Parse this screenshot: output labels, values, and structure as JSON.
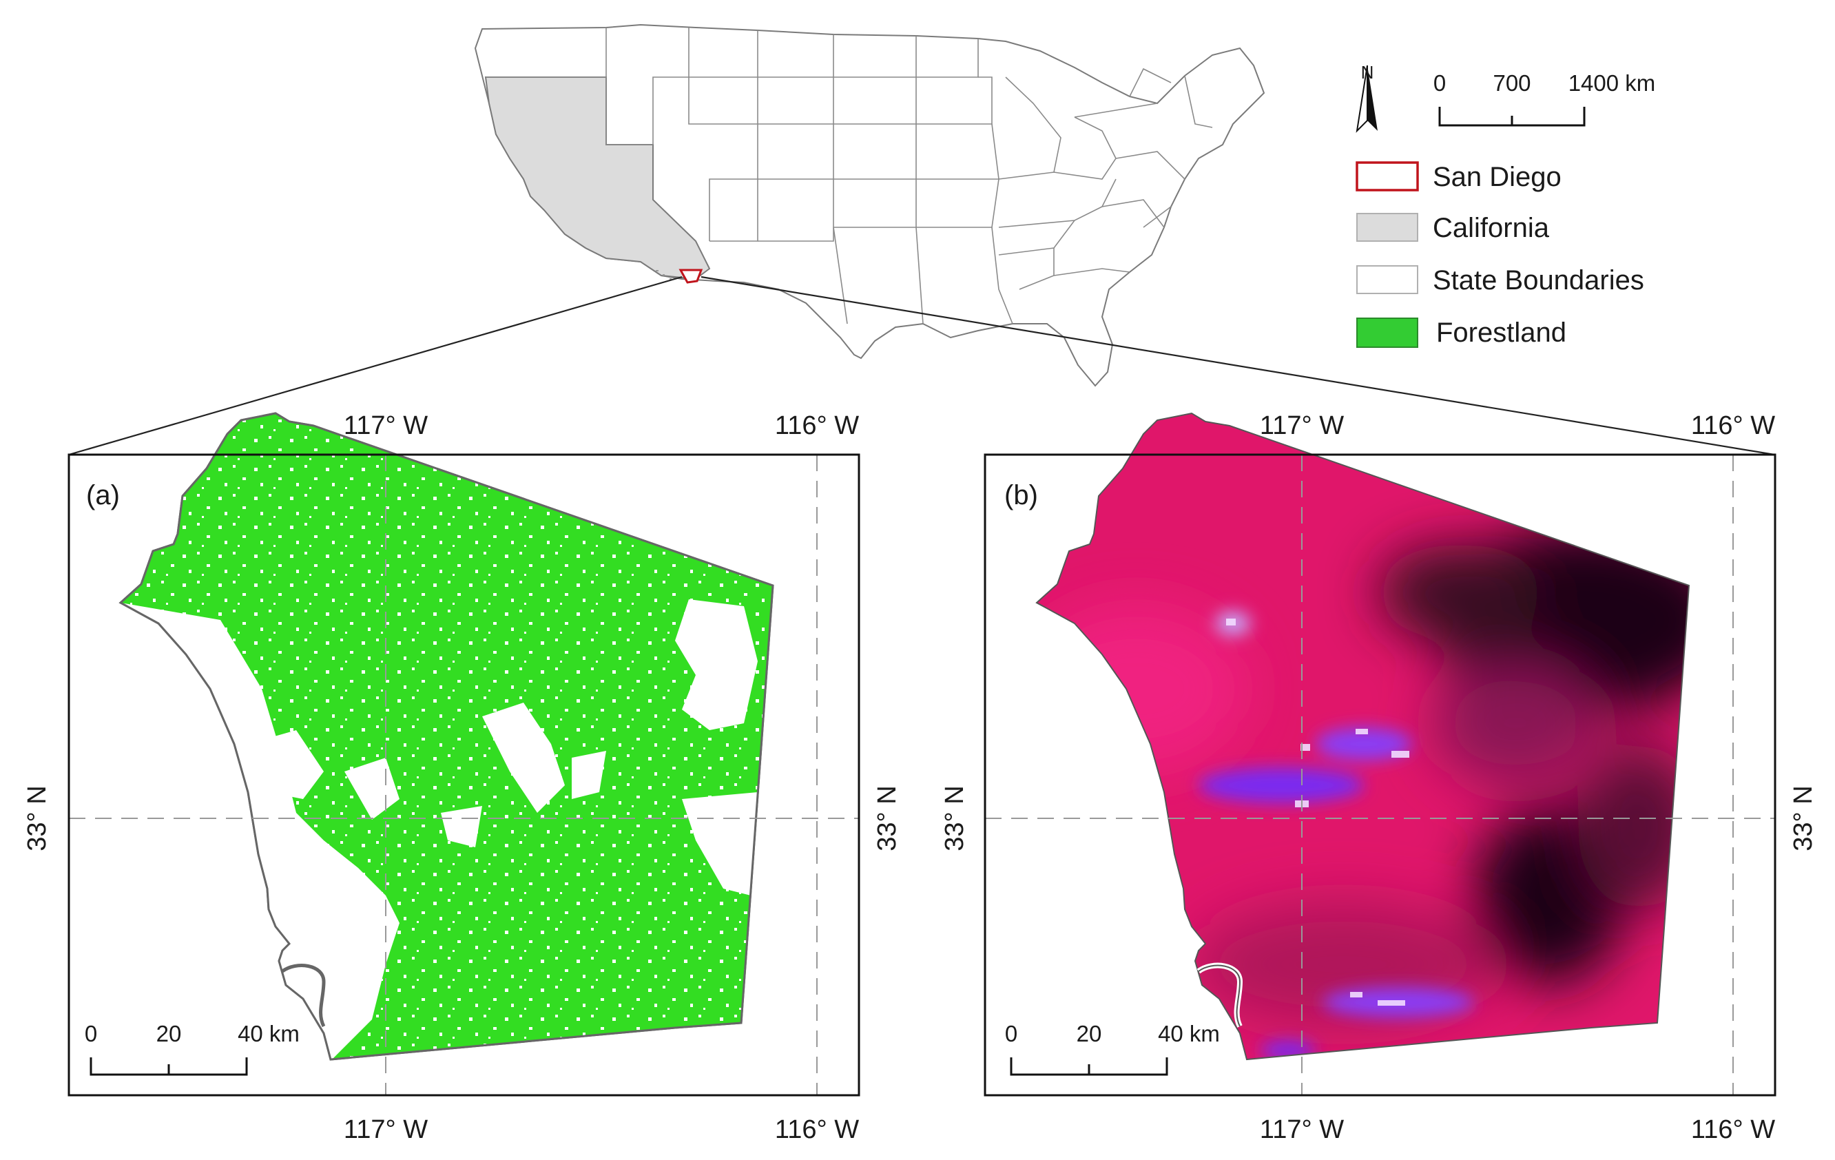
{
  "inset": {
    "north_label": "N",
    "scale": {
      "ticks": [
        "0",
        "700",
        "1400 km"
      ]
    },
    "legend": [
      {
        "label": "San Diego",
        "fill": "#ffffff",
        "stroke": "#c0141c"
      },
      {
        "label": "California",
        "fill": "#dcdcdc",
        "stroke": "#9a9a9a"
      },
      {
        "label": "State Boundaries",
        "fill": "#ffffff",
        "stroke": "#9a9a9a"
      },
      {
        "label": "Forestland",
        "fill": "#33cc33",
        "stroke": "#2a8a2a"
      }
    ]
  },
  "panels": [
    {
      "label": "(a)",
      "lon_labels_top": [
        "117° W",
        "116° W"
      ],
      "lon_labels_bottom": [
        "117° W",
        "116° W"
      ],
      "lat_label_left": "33° N",
      "lat_label_right": "33° N",
      "scale": {
        "ticks": [
          "0",
          "20",
          "40 km"
        ]
      }
    },
    {
      "label": "(b)",
      "lon_labels_top": [
        "117° W",
        "116° W"
      ],
      "lon_labels_bottom": [
        "117° W",
        "116° W"
      ],
      "lat_label_left": "33° N",
      "lat_label_right": "33° N",
      "scale": {
        "ticks": [
          "0",
          "20",
          "40 km"
        ]
      }
    }
  ],
  "colors": {
    "forest": "#33dd22",
    "imagery_base": "#e0166a",
    "imagery_dark": "#1a0612",
    "imagery_purple": "#7a2cf0",
    "san_diego_outline": "#c0141c",
    "california": "#dcdcdc"
  }
}
